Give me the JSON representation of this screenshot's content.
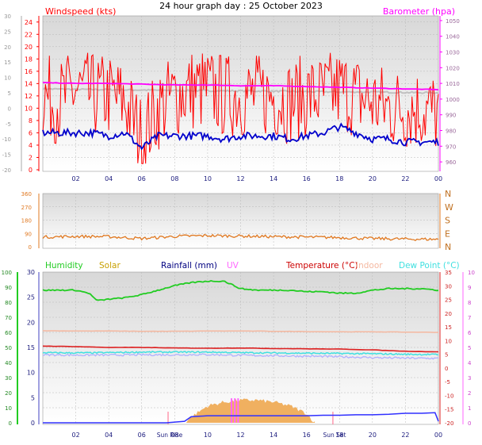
{
  "title": "24 hour graph day : 25 October 2023",
  "time_ticks": [
    "02",
    "04",
    "06",
    "08",
    "10",
    "12",
    "14",
    "16",
    "18",
    "20",
    "22",
    "00"
  ],
  "sun_labels": [
    "Sun Rise",
    "Sun Set"
  ],
  "colors": {
    "wind_gust": "#ff0000",
    "wind_avg": "#0000cc",
    "barometer": "#ff00ff",
    "direction": "#e07820",
    "humidity": "#22cc22",
    "solar": "#f0b060",
    "rainfall": "#3030ff",
    "uv": "#ff66ff",
    "temperature": "#dd2020",
    "indoor": "#f5b8a0",
    "dew_point": "#40e0e0",
    "wind_chill": "#b0b0ff"
  },
  "chart_data": [
    {
      "type": "line",
      "panel": "wind_pressure",
      "legend": [
        "Windspeed (kts)",
        "Barometer (hpa)"
      ],
      "left_axis": {
        "label": "Windspeed (kts)",
        "ticks": [
          0,
          2,
          4,
          6,
          8,
          10,
          12,
          14,
          16,
          18,
          20,
          22,
          24
        ],
        "range": [
          0,
          25
        ]
      },
      "outer_left_axis": {
        "ticks": [
          -20,
          -15,
          -10,
          -5,
          0,
          5,
          10,
          15,
          20,
          25,
          30
        ]
      },
      "right_axis": {
        "label": "Barometer (hpa)",
        "ticks": [
          960,
          970,
          980,
          990,
          1000,
          1010,
          1020,
          1030,
          1040,
          1050
        ],
        "range": [
          955,
          1053
        ]
      },
      "x_range_hours": [
        0,
        24
      ],
      "series": [
        {
          "name": "gust",
          "x": [
            0,
            1,
            2,
            3,
            4,
            5,
            6,
            7,
            8,
            9,
            10,
            11,
            12,
            13,
            14,
            15,
            16,
            17,
            18,
            19,
            20,
            21,
            22,
            23,
            24
          ],
          "values": [
            12,
            11,
            13,
            12,
            12,
            11,
            5,
            10,
            12,
            13,
            13,
            12,
            12,
            12,
            12,
            11,
            12,
            12,
            13,
            12,
            11,
            10,
            10,
            10,
            9
          ]
        },
        {
          "name": "avg",
          "x": [
            0,
            1,
            2,
            3,
            4,
            5,
            6,
            7,
            8,
            9,
            10,
            11,
            12,
            13,
            14,
            15,
            16,
            17,
            18,
            19,
            20,
            21,
            22,
            23,
            24
          ],
          "values": [
            6,
            6,
            6,
            6,
            5.5,
            6,
            3.5,
            5.5,
            5.5,
            5.5,
            5.5,
            5,
            5.5,
            5.5,
            5.5,
            5,
            5.5,
            6,
            7,
            6,
            5,
            5,
            4.5,
            4.5,
            4.5
          ]
        },
        {
          "name": "barometer",
          "x": [
            0,
            2,
            4,
            6,
            8,
            10,
            12,
            14,
            16,
            18,
            20,
            22,
            24
          ],
          "values": [
            1010.5,
            1010,
            1010,
            1009.5,
            1009,
            1009,
            1008.5,
            1008.5,
            1008,
            1007.5,
            1007,
            1006.5,
            1006
          ]
        },
        {
          "name": "barometer_secondary",
          "x": [
            0,
            2,
            4,
            6,
            8,
            10,
            12,
            14,
            16,
            18,
            20,
            22,
            24
          ],
          "values": [
            1006.5,
            1006.2,
            1006,
            1005.8,
            1005.5,
            1005.3,
            1005.2,
            1005,
            1004.8,
            1004.6,
            1004.5,
            1004.2,
            1004
          ]
        }
      ]
    },
    {
      "type": "line",
      "panel": "wind_direction",
      "left_axis": {
        "ticks": [
          0,
          90,
          180,
          270,
          360
        ],
        "range": [
          0,
          360
        ]
      },
      "right_axis": {
        "ticks": [
          "N",
          "W",
          "S",
          "E",
          "N"
        ]
      },
      "series": [
        {
          "name": "direction",
          "x": [
            0,
            2,
            4,
            6,
            8,
            10,
            12,
            14,
            16,
            18,
            20,
            22,
            24
          ],
          "values": [
            65,
            70,
            68,
            55,
            70,
            75,
            72,
            68,
            65,
            62,
            55,
            52,
            50
          ]
        }
      ]
    },
    {
      "type": "line",
      "panel": "temperature",
      "legend": [
        "Humidity",
        "Solar",
        "Rainfall (mm)",
        "UV",
        "Temperature (°C)",
        "Indoor",
        "Dew Point (°C)"
      ],
      "left_axis": {
        "ticks": [
          0,
          10,
          20,
          30,
          40,
          50,
          60,
          70,
          80,
          90,
          100
        ],
        "range": [
          0,
          100
        ]
      },
      "left_axis_2": {
        "ticks": [
          0,
          5,
          10,
          15,
          20,
          25,
          30
        ],
        "range": [
          0,
          30
        ]
      },
      "right_axis": {
        "ticks": [
          -20,
          -15,
          -10,
          -5,
          0,
          5,
          10,
          15,
          20,
          25,
          30,
          35
        ],
        "range": [
          -20,
          35
        ]
      },
      "right_axis_2": {
        "ticks": [
          0,
          1,
          2,
          3,
          4,
          5,
          6,
          7,
          8,
          9,
          10
        ],
        "range": [
          0,
          10
        ]
      },
      "series": [
        {
          "name": "humidity",
          "x": [
            0,
            1,
            2,
            2.8,
            3.3,
            4,
            5,
            6,
            7,
            8,
            9,
            10,
            11,
            12,
            13,
            14,
            15,
            16,
            17,
            18,
            19,
            20,
            21,
            22,
            23,
            24
          ],
          "values": [
            88,
            88,
            88,
            86,
            81,
            82,
            83,
            85,
            88,
            91,
            93,
            94,
            94,
            89,
            88,
            88,
            88,
            87,
            87,
            86,
            86,
            88,
            89,
            89,
            89,
            88
          ]
        },
        {
          "name": "temperature",
          "x": [
            0,
            2,
            4,
            6,
            8,
            10,
            12,
            14,
            16,
            18,
            20,
            22,
            24
          ],
          "values": [
            8,
            7.8,
            7.5,
            7.5,
            7.3,
            7.2,
            7.3,
            7.1,
            7.0,
            6.9,
            6.6,
            6.1,
            5.9
          ]
        },
        {
          "name": "indoor",
          "x": [
            0,
            2,
            4,
            6,
            8,
            10,
            12,
            14,
            16,
            18,
            20,
            22,
            24
          ],
          "values": [
            13.6,
            13.5,
            13.5,
            13.4,
            13.4,
            13.5,
            13.5,
            13.4,
            13.3,
            13.2,
            13.2,
            13.1,
            13.0
          ]
        },
        {
          "name": "dew_point",
          "x": [
            0,
            2,
            4,
            6,
            8,
            10,
            12,
            14,
            16,
            18,
            20,
            22,
            24
          ],
          "values": [
            5.6,
            5.5,
            5.6,
            5.8,
            5.8,
            5.8,
            5.6,
            5.5,
            5.4,
            5.3,
            5.2,
            5.0,
            4.9
          ]
        },
        {
          "name": "wind_chill",
          "x": [
            0,
            2,
            4,
            6,
            8,
            10,
            12,
            14,
            16,
            18,
            20,
            22,
            24
          ],
          "values": [
            4.8,
            4.7,
            4.7,
            4.8,
            4.8,
            4.9,
            4.6,
            4.5,
            4.3,
            4.1,
            3.8,
            3.6,
            3.5
          ]
        },
        {
          "name": "rainfall",
          "x": [
            0,
            7.5,
            8.6,
            9,
            10,
            12,
            14,
            15,
            16,
            17,
            18,
            19,
            20,
            21,
            22,
            23,
            23.8,
            24
          ],
          "values": [
            0,
            0,
            0.3,
            1.2,
            1.4,
            1.4,
            1.4,
            1.4,
            1.4,
            1.5,
            1.5,
            1.6,
            1.6,
            1.7,
            1.9,
            1.9,
            2.0,
            0.3
          ]
        },
        {
          "name": "solar",
          "x": [
            8.6,
            9,
            10,
            11,
            12,
            13,
            14,
            15,
            16,
            16.5
          ],
          "values": [
            0,
            1.5,
            4.5,
            5.5,
            6,
            6,
            5.5,
            4.5,
            2.5,
            0
          ]
        }
      ]
    }
  ]
}
